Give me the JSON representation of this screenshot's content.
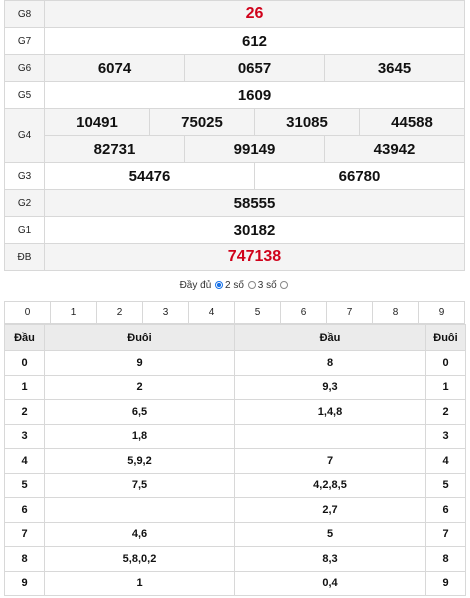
{
  "results": {
    "rows": [
      {
        "label": "G8",
        "values": [
          "26"
        ],
        "red": true
      },
      {
        "label": "G7",
        "values": [
          "612"
        ]
      },
      {
        "label": "G6",
        "values": [
          "6074",
          "0657",
          "3645"
        ]
      },
      {
        "label": "G5",
        "values": [
          "1609"
        ]
      },
      {
        "label": "G4",
        "values": [
          "10491",
          "75025",
          "31085",
          "44588"
        ],
        "values2": [
          "82731",
          "99149",
          "43942"
        ]
      },
      {
        "label": "G3",
        "values": [
          "54476",
          "66780"
        ]
      },
      {
        "label": "G2",
        "values": [
          "58555"
        ]
      },
      {
        "label": "G1",
        "values": [
          "30182"
        ]
      },
      {
        "label": "ĐB",
        "values": [
          "747138"
        ],
        "red": true
      }
    ]
  },
  "mode": {
    "full_label": "Đầy đủ",
    "two_label": "2 số",
    "three_label": "3 số",
    "selected": "2 số"
  },
  "digit_filter": [
    "0",
    "1",
    "2",
    "3",
    "4",
    "5",
    "6",
    "7",
    "8",
    "9"
  ],
  "headtail": {
    "headers": [
      "Đầu",
      "Đuôi",
      "Đầu",
      "Đuôi"
    ],
    "rows": [
      {
        "head": "0",
        "tail": "9",
        "head2": "8",
        "tail2": "0"
      },
      {
        "head": "1",
        "tail": "2",
        "head2": "9,3",
        "tail2": "1"
      },
      {
        "head": "2",
        "tail": "6,5",
        "head2": "1,4,8",
        "tail2": "2"
      },
      {
        "head": "3",
        "tail": "1,8",
        "head2": "",
        "tail2": "3"
      },
      {
        "head": "4",
        "tail": "5,9,2",
        "head2": "7",
        "tail2": "4"
      },
      {
        "head": "5",
        "tail": "7,5",
        "head2": "4,2,8,5",
        "tail2": "5"
      },
      {
        "head": "6",
        "tail": "",
        "head2": "2,7",
        "tail2": "6"
      },
      {
        "head": "7",
        "tail": "4,6",
        "head2": "5",
        "tail2": "7"
      },
      {
        "head": "8",
        "tail": "5,8,0,2",
        "head2": "8,3",
        "tail2": "8"
      },
      {
        "head": "9",
        "tail": "1",
        "head2": "0,4",
        "tail2": "9"
      }
    ]
  },
  "colors": {
    "accent_red": "#d0021b",
    "radio_blue": "#1a73e8"
  }
}
